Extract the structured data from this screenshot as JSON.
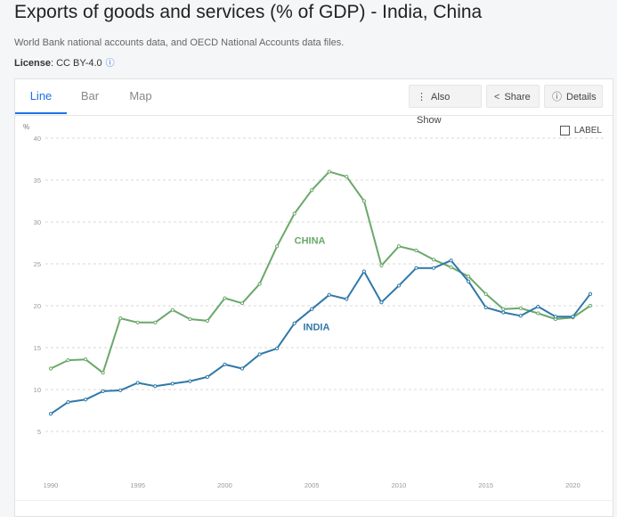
{
  "page": {
    "title": "Exports of goods and services (% of GDP) - India, China",
    "source": "World Bank national accounts data, and OECD National Accounts data files.",
    "license_label": "License",
    "license_value": ": CC BY-4.0"
  },
  "tabs": [
    {
      "label": "Line",
      "active": true
    },
    {
      "label": "Bar",
      "active": false
    },
    {
      "label": "Map",
      "active": false
    }
  ],
  "toolbar": {
    "also_show": "Also Show",
    "share": "Share",
    "details": "Details"
  },
  "label_toggle": "LABEL",
  "chart_data": {
    "type": "line",
    "ylabel": "%",
    "ylim": [
      0,
      40
    ],
    "yticks": [
      5,
      10,
      15,
      20,
      25,
      30,
      35,
      40
    ],
    "xlim": [
      1990,
      2021
    ],
    "xticks": [
      1990,
      1995,
      2000,
      2005,
      2010,
      2015,
      2020
    ],
    "x": [
      1990,
      1991,
      1992,
      1993,
      1994,
      1995,
      1996,
      1997,
      1998,
      1999,
      2000,
      2001,
      2002,
      2003,
      2004,
      2005,
      2006,
      2007,
      2008,
      2009,
      2010,
      2011,
      2012,
      2013,
      2014,
      2015,
      2016,
      2017,
      2018,
      2019,
      2020,
      2021
    ],
    "series": [
      {
        "name": "CHINA",
        "color": "#6aa86a",
        "values": [
          12.5,
          13.5,
          13.6,
          12.0,
          18.5,
          18.0,
          18.0,
          19.5,
          18.4,
          18.2,
          20.9,
          20.3,
          22.6,
          27.1,
          31.0,
          33.8,
          36.0,
          35.4,
          32.5,
          24.8,
          27.1,
          26.6,
          25.5,
          24.6,
          23.5,
          21.4,
          19.6,
          19.7,
          19.1,
          18.4,
          18.6,
          20.0
        ]
      },
      {
        "name": "INDIA",
        "color": "#2f78a8",
        "values": [
          7.1,
          8.5,
          8.8,
          9.8,
          9.9,
          10.8,
          10.4,
          10.7,
          11.0,
          11.5,
          13.0,
          12.5,
          14.2,
          14.9,
          17.9,
          19.6,
          21.3,
          20.8,
          24.1,
          20.4,
          22.4,
          24.5,
          24.5,
          25.4,
          22.9,
          19.8,
          19.2,
          18.8,
          19.9,
          18.7,
          18.7,
          21.4
        ]
      }
    ]
  }
}
